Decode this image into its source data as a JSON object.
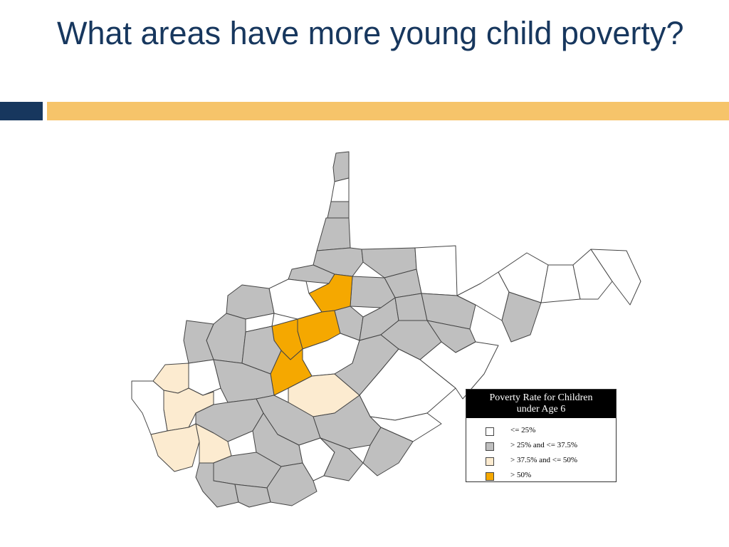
{
  "slide": {
    "title": "What areas have more young child poverty?"
  },
  "colors": {
    "title": "#17375e",
    "accent_bar_left": "#17375e",
    "accent_bar_right": "#f6c46a",
    "county_border": "#444444"
  },
  "legend": {
    "title_line1": "Poverty Rate for Children",
    "title_line2": "under Age 6",
    "items": [
      {
        "label": "<= 25%",
        "color": "#ffffff"
      },
      {
        "label": "> 25% and <= 37.5%",
        "color": "#bfbfbf"
      },
      {
        "label": "> 37.5% and <= 50%",
        "color": "#fcebd0"
      },
      {
        "label": "> 50%",
        "color": "#f5a800"
      }
    ]
  }
}
